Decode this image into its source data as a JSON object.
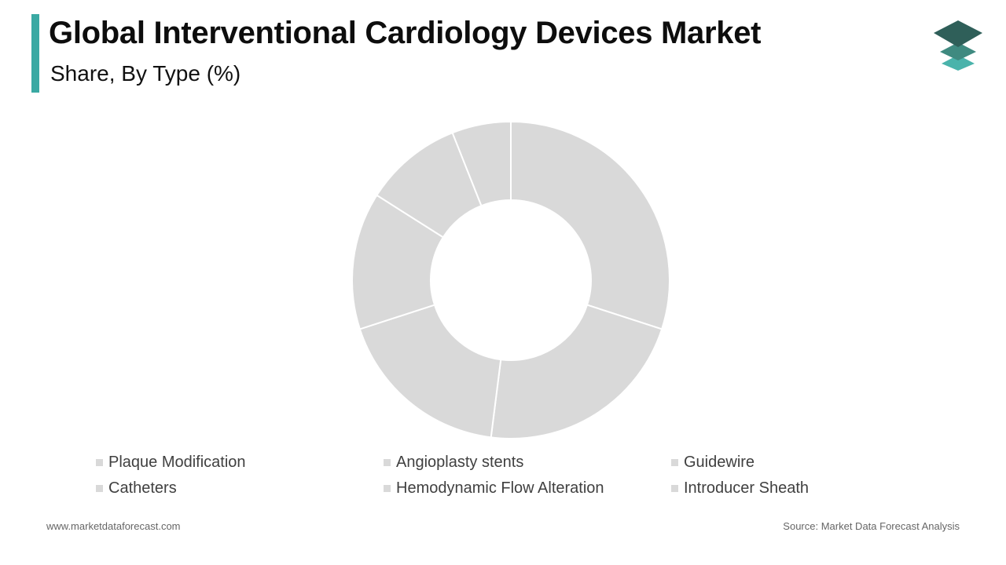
{
  "header": {
    "title": "Global Interventional Cardiology Devices Market",
    "subtitle": "Share, By Type (%)"
  },
  "logo": {
    "icon": "stacked-layers-icon",
    "colors": [
      "#2f5f59",
      "#3f8a80",
      "#4ab3ab"
    ]
  },
  "colors": {
    "accent": "#3aa9a3",
    "slice": "#d9d9d9",
    "slice_border": "#ffffff",
    "legend_swatch": "#d9d9d9"
  },
  "chart_data": {
    "type": "pie",
    "donut": true,
    "legend_position": "bottom",
    "categories": [
      "Plaque Modification",
      "Angioplasty stents",
      "Guidewire",
      "Catheters",
      "Hemodynamic Flow Alteration",
      "Introducer Sheath"
    ],
    "values": [
      30,
      22,
      18,
      14,
      10,
      6
    ]
  },
  "footer": {
    "website": "www.marketdataforecast.com",
    "source": "Source: Market Data Forecast Analysis"
  }
}
